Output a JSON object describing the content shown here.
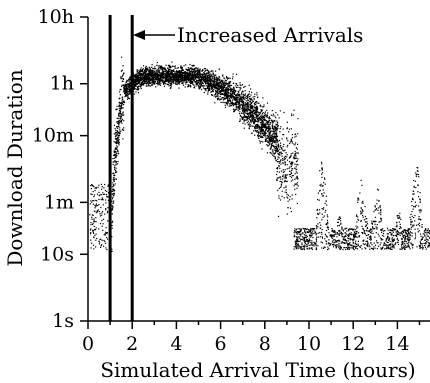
{
  "chart_data": {
    "type": "scatter",
    "xlabel": "Simulated Arrival Time (hours)",
    "ylabel": "Download Duration",
    "xlim": [
      0,
      15.5
    ],
    "ylim_seconds": [
      1,
      36000
    ],
    "y_scale": "log",
    "grid": false,
    "legend": "none",
    "x_ticks": [
      0,
      2,
      4,
      6,
      8,
      10,
      12,
      14
    ],
    "x_tick_labels": [
      "0",
      "2",
      "4",
      "6",
      "8",
      "10",
      "12",
      "14"
    ],
    "y_ticks_seconds": [
      1,
      10,
      60,
      600,
      3600,
      36000
    ],
    "y_tick_labels": [
      "1s",
      "10s",
      "1m",
      "10m",
      "1h",
      "10h"
    ],
    "vertical_markers_hours": [
      1,
      2
    ],
    "annotation": {
      "text": "Increased Arrivals",
      "points_to_hour": 2,
      "at_seconds": 23000
    },
    "colors": {
      "points": "#000000",
      "axes": "#000000",
      "background": "#ffffff"
    },
    "trend_phases": [
      {
        "x_range_hours": [
          0,
          1
        ],
        "y_range_seconds": [
          10,
          120
        ],
        "shape": "scattered low durations"
      },
      {
        "x_range_hours": [
          1,
          1.6
        ],
        "y_range_seconds": [
          12,
          3000
        ],
        "shape": "steep rise"
      },
      {
        "x_range_hours": [
          1.6,
          5
        ],
        "y_range_seconds": [
          2500,
          6500
        ],
        "shape": "plateau near 1h"
      },
      {
        "x_range_hours": [
          5,
          8.5
        ],
        "y_range_seconds": [
          300,
          4000
        ],
        "shape": "decline to about 10m"
      },
      {
        "x_range_hours": [
          8.5,
          9.5
        ],
        "y_range_seconds": [
          40,
          600
        ],
        "shape": "cluster near 1m-10m"
      },
      {
        "x_range_hours": [
          9.5,
          15.5
        ],
        "y_range_seconds": [
          10,
          300
        ],
        "shape": "sparse spikes between 10s and 5m"
      }
    ]
  }
}
